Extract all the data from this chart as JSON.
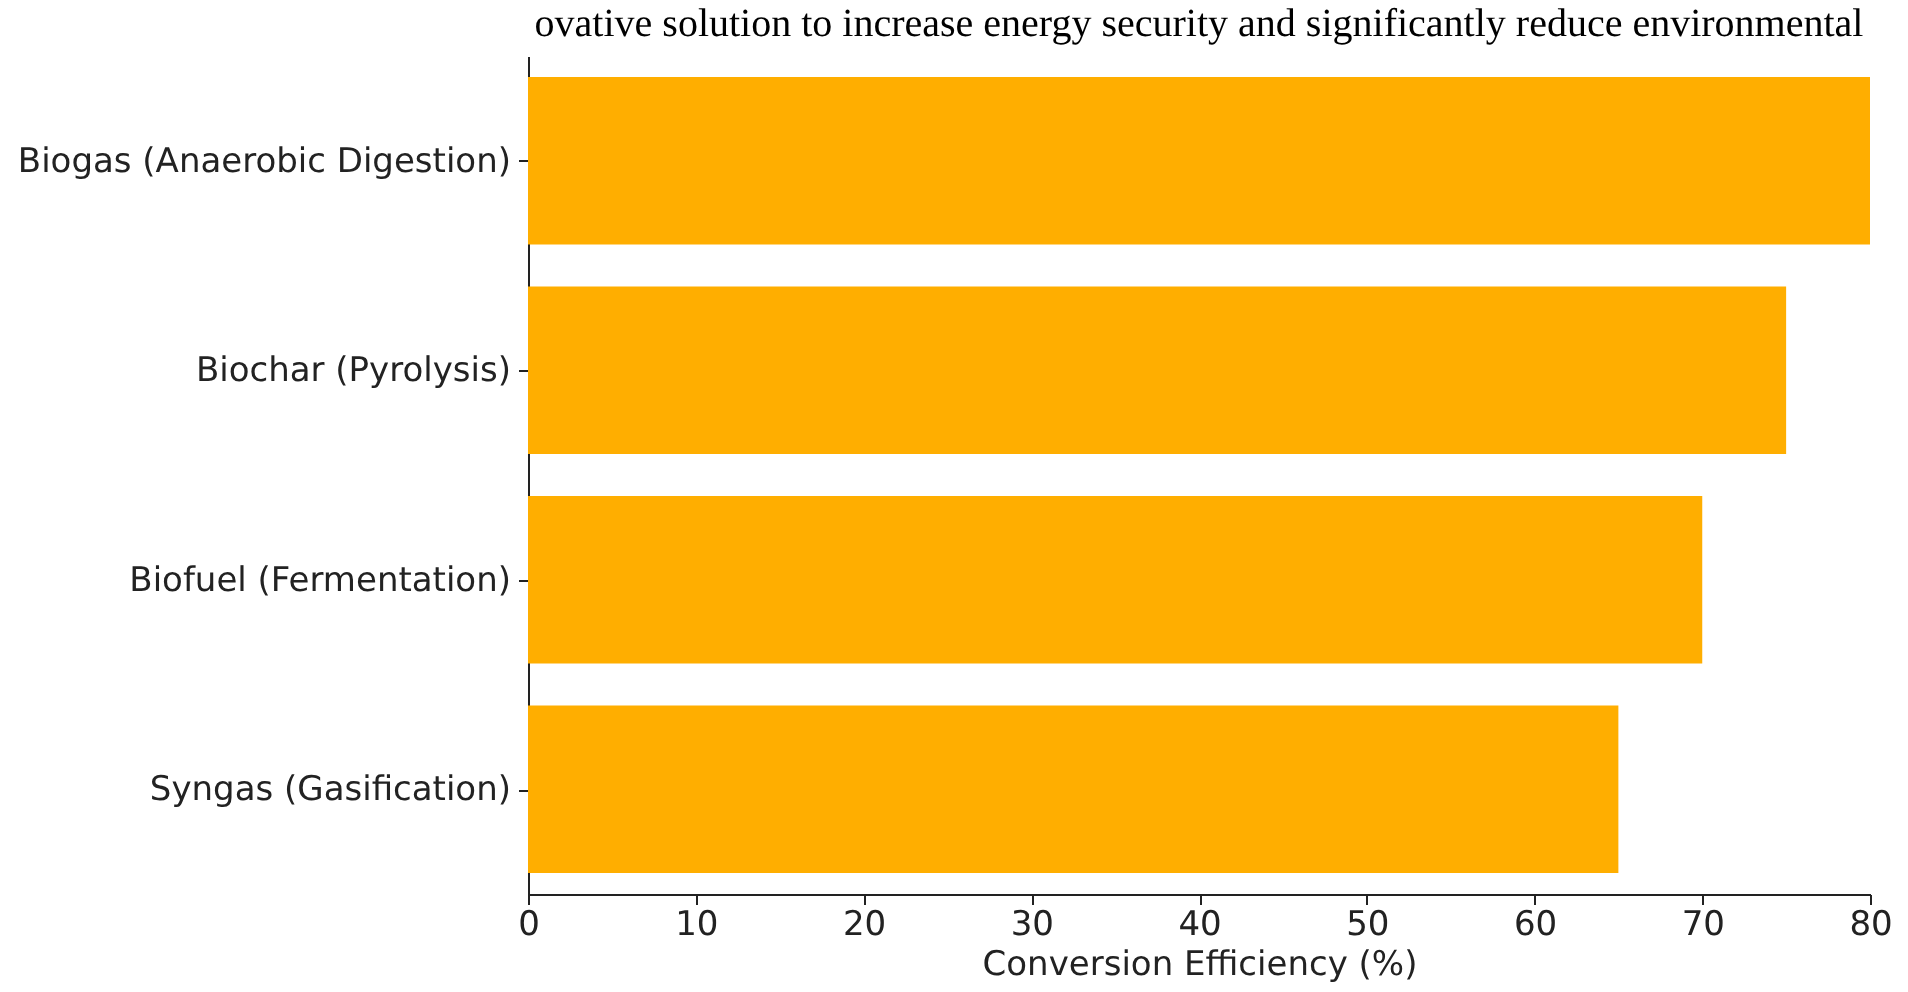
{
  "chart_data": {
    "type": "bar",
    "orientation": "horizontal",
    "title": "ovative solution to increase energy security and significantly reduce environmental",
    "xlabel": "Conversion Efficiency (%)",
    "categories": [
      "Biogas (Anaerobic Digestion)",
      "Biochar (Pyrolysis)",
      "Biofuel (Fermentation)",
      "Syngas (Gasification)"
    ],
    "values": [
      80,
      75,
      70,
      65
    ],
    "color": "#ffae00",
    "xlim": [
      0,
      80
    ],
    "xticks": [
      0,
      10,
      20,
      30,
      40,
      50,
      60,
      70,
      80
    ],
    "grid": false
  }
}
